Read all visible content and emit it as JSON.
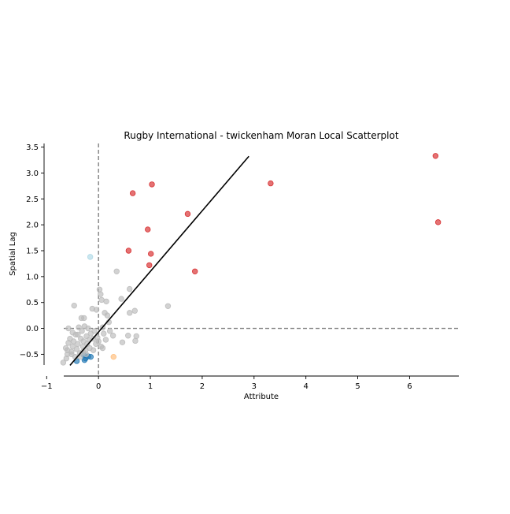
{
  "chart_data": {
    "type": "scatter",
    "title": "Rugby International - twickenham Moran Local Scatterplot",
    "xlabel": "Attribute",
    "ylabel": "Spatial Lag",
    "xlim": [
      -1.05,
      6.95
    ],
    "ylim": [
      -0.92,
      3.57
    ],
    "x_ticks": [
      -1,
      0,
      1,
      2,
      3,
      4,
      5,
      6
    ],
    "x_tick_labels": [
      "−1",
      "0",
      "1",
      "2",
      "3",
      "4",
      "5",
      "6"
    ],
    "y_ticks": [
      -0.5,
      0.0,
      0.5,
      1.0,
      1.5,
      2.0,
      2.5,
      3.0,
      3.5
    ],
    "y_tick_labels": [
      "−0.5",
      "0.0",
      "0.5",
      "1.0",
      "1.5",
      "2.0",
      "2.5",
      "3.0",
      "3.5"
    ],
    "grid": false,
    "legend": "none",
    "reference_lines": {
      "vertical_x": 0,
      "horizontal_y": 0,
      "style": "dashed",
      "color": "#808080"
    },
    "fit_line": {
      "slope": 1.17,
      "intercept": -0.07,
      "x_range": [
        -0.55,
        2.9
      ],
      "color": "#000000"
    },
    "quadrant_colors": {
      "HH": "#d62728",
      "LL": "#1f77b4",
      "LH": "#add8e6",
      "HL": "#ffbb78",
      "ns": "#bababa"
    },
    "series": [
      {
        "quadrant": "HH",
        "color": "#d62728",
        "points": [
          [
            6.5,
            3.33
          ],
          [
            6.55,
            2.05
          ],
          [
            3.32,
            2.8
          ],
          [
            1.03,
            2.78
          ],
          [
            0.66,
            2.61
          ],
          [
            1.72,
            2.21
          ],
          [
            0.95,
            1.91
          ],
          [
            0.58,
            1.5
          ],
          [
            1.01,
            1.44
          ],
          [
            0.98,
            1.22
          ],
          [
            1.86,
            1.1
          ]
        ]
      },
      {
        "quadrant": "LL",
        "color": "#1f77b4",
        "points": [
          [
            -0.28,
            -0.52
          ],
          [
            -0.2,
            -0.54
          ],
          [
            -0.25,
            -0.58
          ],
          [
            -0.27,
            -0.61
          ],
          [
            -0.15,
            -0.55
          ],
          [
            -0.42,
            -0.63
          ]
        ]
      },
      {
        "quadrant": "LH",
        "color": "#add8e6",
        "points": [
          [
            -0.16,
            1.38
          ]
        ]
      },
      {
        "quadrant": "HL",
        "color": "#ffbb78",
        "points": [
          [
            0.29,
            -0.55
          ]
        ]
      },
      {
        "quadrant": "ns",
        "color": "#bababa",
        "points": [
          [
            -0.68,
            -0.66
          ],
          [
            -0.62,
            -0.58
          ],
          [
            -0.6,
            -0.5
          ],
          [
            -0.63,
            -0.38
          ],
          [
            -0.58,
            -0.28
          ],
          [
            -0.55,
            -0.2
          ],
          [
            -0.58,
            0.0
          ],
          [
            -0.52,
            -0.45
          ],
          [
            -0.5,
            -0.35
          ],
          [
            -0.48,
            -0.25
          ],
          [
            -0.5,
            -0.08
          ],
          [
            -0.47,
            0.44
          ],
          [
            -0.45,
            -0.55
          ],
          [
            -0.42,
            -0.4
          ],
          [
            -0.4,
            -0.3
          ],
          [
            -0.4,
            -0.12
          ],
          [
            -0.38,
            0.02
          ],
          [
            -0.36,
            -0.48
          ],
          [
            -0.34,
            -0.2
          ],
          [
            -0.33,
            0.2
          ],
          [
            -0.32,
            -0.05
          ],
          [
            -0.3,
            -0.35
          ],
          [
            -0.29,
            -0.25
          ],
          [
            -0.28,
            0.2
          ],
          [
            -0.27,
            0.04
          ],
          [
            -0.25,
            -0.42
          ],
          [
            -0.23,
            -0.15
          ],
          [
            -0.22,
            -0.3
          ],
          [
            -0.2,
            0.0
          ],
          [
            -0.18,
            -0.22
          ],
          [
            -0.17,
            -0.38
          ],
          [
            -0.15,
            -0.1
          ],
          [
            -0.12,
            0.38
          ],
          [
            -0.1,
            -0.2
          ],
          [
            -0.08,
            -0.05
          ],
          [
            -0.05,
            -0.3
          ],
          [
            -0.04,
            0.36
          ],
          [
            -0.02,
            -0.18
          ],
          [
            0.0,
            -0.25
          ],
          [
            0.02,
            0.75
          ],
          [
            0.04,
            0.66
          ],
          [
            0.05,
            -0.35
          ],
          [
            0.06,
            0.55
          ],
          [
            0.08,
            0.02
          ],
          [
            0.1,
            -0.1
          ],
          [
            0.12,
            0.3
          ],
          [
            0.14,
            -0.22
          ],
          [
            0.15,
            0.52
          ],
          [
            0.17,
            0.25
          ],
          [
            0.2,
            0.12
          ],
          [
            0.22,
            -0.05
          ],
          [
            0.28,
            -0.14
          ],
          [
            0.35,
            1.1
          ],
          [
            0.44,
            0.57
          ],
          [
            0.46,
            -0.27
          ],
          [
            0.57,
            -0.14
          ],
          [
            0.6,
            0.3
          ],
          [
            0.6,
            0.76
          ],
          [
            0.7,
            0.34
          ],
          [
            0.71,
            -0.24
          ],
          [
            0.73,
            -0.15
          ],
          [
            1.34,
            0.43
          ],
          [
            -0.44,
            -0.12
          ],
          [
            -0.35,
            -0.55
          ],
          [
            -0.52,
            -0.5
          ],
          [
            -0.1,
            -0.42
          ],
          [
            0.08,
            -0.38
          ],
          [
            -0.3,
            -0.45
          ],
          [
            -0.24,
            -0.5
          ],
          [
            -0.6,
            -0.42
          ]
        ]
      }
    ]
  }
}
